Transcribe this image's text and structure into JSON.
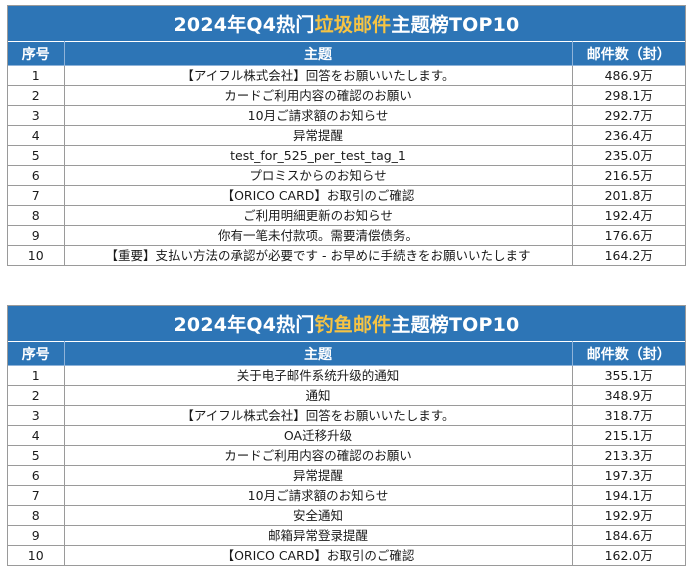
{
  "spam": {
    "title_prefix": "2024年Q4热门",
    "title_highlight": "垃圾邮件",
    "title_suffix": "主题榜TOP10",
    "headers": {
      "rank": "序号",
      "subject": "主题",
      "count": "邮件数（封）"
    },
    "rows": [
      {
        "rank": "1",
        "subject": "【アイフル株式会社】回答をお願いいたします。",
        "count": "486.9万"
      },
      {
        "rank": "2",
        "subject": "カードご利用内容の確認のお願い",
        "count": "298.1万"
      },
      {
        "rank": "3",
        "subject": "10月ご請求額のお知らせ",
        "count": "292.7万"
      },
      {
        "rank": "4",
        "subject": "异常提醒",
        "count": "236.4万"
      },
      {
        "rank": "5",
        "subject": "test_for_525_per_test_tag_1",
        "count": "235.0万"
      },
      {
        "rank": "6",
        "subject": "プロミスからのお知らせ",
        "count": "216.5万"
      },
      {
        "rank": "7",
        "subject": "【ORICO CARD】お取引のご確認",
        "count": "201.8万"
      },
      {
        "rank": "8",
        "subject": "ご利用明細更新のお知らせ",
        "count": "192.4万"
      },
      {
        "rank": "9",
        "subject": "你有一笔未付款项。需要清偿债务。",
        "count": "176.6万"
      },
      {
        "rank": "10",
        "subject": "【重要】支払い方法の承認が必要です - お早めに手続きをお願いいたします",
        "count": "164.2万"
      }
    ]
  },
  "phish": {
    "title_prefix": "2024年Q4热门",
    "title_highlight": "钓鱼邮件",
    "title_suffix": "主题榜TOP10",
    "headers": {
      "rank": "序号",
      "subject": "主题",
      "count": "邮件数（封）"
    },
    "rows": [
      {
        "rank": "1",
        "subject": "关于电子邮件系统升级的通知",
        "count": "355.1万"
      },
      {
        "rank": "2",
        "subject": "通知",
        "count": "348.9万"
      },
      {
        "rank": "3",
        "subject": "【アイフル株式会社】回答をお願いいたします。",
        "count": "318.7万"
      },
      {
        "rank": "4",
        "subject": "OA迁移升级",
        "count": "215.1万"
      },
      {
        "rank": "5",
        "subject": "カードご利用内容の確認のお願い",
        "count": "213.3万"
      },
      {
        "rank": "6",
        "subject": "异常提醒",
        "count": "197.3万"
      },
      {
        "rank": "7",
        "subject": "10月ご請求額のお知らせ",
        "count": "194.1万"
      },
      {
        "rank": "8",
        "subject": "安全通知",
        "count": "192.9万"
      },
      {
        "rank": "9",
        "subject": "邮箱异常登录提醒",
        "count": "184.6万"
      },
      {
        "rank": "10",
        "subject": "【ORICO CARD】お取引のご確認",
        "count": "162.0万"
      }
    ]
  },
  "colors": {
    "header_blue": "#2d75b6",
    "title_highlight": "#f6c343",
    "grid": "#9a9a9a"
  }
}
